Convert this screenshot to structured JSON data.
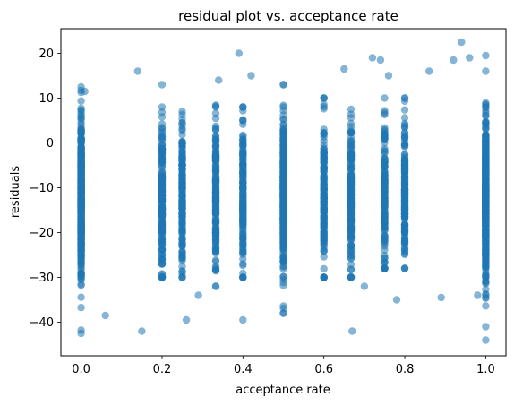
{
  "chart_data": {
    "type": "scatter",
    "title": "residual plot vs. acceptance rate",
    "xlabel": "acceptance rate",
    "ylabel": "residuals",
    "xlim": [
      -0.05,
      1.05
    ],
    "ylim": [
      -47.5,
      25.5
    ],
    "xticks": [
      0.0,
      0.2,
      0.4,
      0.6,
      0.8,
      1.0
    ],
    "xtick_labels": [
      "0.0",
      "0.2",
      "0.4",
      "0.6",
      "0.8",
      "1.0"
    ],
    "yticks": [
      -40,
      -30,
      -20,
      -10,
      0,
      10,
      20
    ],
    "ytick_labels": [
      "−40",
      "−30",
      "−20",
      "−10",
      "0",
      "10",
      "20"
    ],
    "grid": false,
    "legend": "none",
    "marker_color": "#1f77b4",
    "marker_alpha": 0.55,
    "approx_point_count": 5000,
    "distribution": {
      "center": -12,
      "spread": 9,
      "min": -44,
      "max": 22.5,
      "dense_columns": [
        {
          "x": 0.0,
          "ymin": -42.5,
          "ymax": 12.5
        },
        {
          "x": 1.0,
          "ymin": -44,
          "ymax": 19.5
        },
        {
          "x": 0.5,
          "ymin": -38,
          "ymax": 13
        },
        {
          "x": 0.333,
          "ymin": -32,
          "ymax": 10
        },
        {
          "x": 0.25,
          "ymin": -30,
          "ymax": 8
        },
        {
          "x": 0.667,
          "ymin": -30,
          "ymax": 12
        },
        {
          "x": 0.75,
          "ymin": -28,
          "ymax": 10
        },
        {
          "x": 0.2,
          "ymin": -30,
          "ymax": 8
        },
        {
          "x": 0.4,
          "ymin": -30,
          "ymax": 8
        },
        {
          "x": 0.6,
          "ymin": -30,
          "ymax": 10
        },
        {
          "x": 0.8,
          "ymin": -28,
          "ymax": 10
        }
      ]
    },
    "points": [
      {
        "x": 0.0,
        "y": -42.5
      },
      {
        "x": 0.0,
        "y": 12.5
      },
      {
        "x": 0.009,
        "y": 11.5
      },
      {
        "x": 1.0,
        "y": -44
      },
      {
        "x": 1.0,
        "y": 19.5
      },
      {
        "x": 0.94,
        "y": 22.5
      },
      {
        "x": 0.39,
        "y": 20
      },
      {
        "x": 0.67,
        "y": -42
      },
      {
        "x": 0.4,
        "y": -39.5
      },
      {
        "x": 0.14,
        "y": 16
      },
      {
        "x": 0.5,
        "y": -38
      },
      {
        "x": 0.5,
        "y": 13
      },
      {
        "x": 0.15,
        "y": -42
      },
      {
        "x": 0.26,
        "y": -39.5
      },
      {
        "x": 0.06,
        "y": -38.5
      },
      {
        "x": 0.42,
        "y": 15
      },
      {
        "x": 0.65,
        "y": 16.5
      },
      {
        "x": 0.72,
        "y": 19
      },
      {
        "x": 0.74,
        "y": 18.5
      },
      {
        "x": 0.92,
        "y": 18.5
      },
      {
        "x": 0.96,
        "y": 19
      },
      {
        "x": 0.76,
        "y": 15
      },
      {
        "x": 0.86,
        "y": 16
      },
      {
        "x": 0.34,
        "y": 14
      },
      {
        "x": 0.2,
        "y": 13
      },
      {
        "x": 0.78,
        "y": -35
      },
      {
        "x": 0.89,
        "y": -34.5
      },
      {
        "x": 0.98,
        "y": -34
      },
      {
        "x": 0.7,
        "y": -32
      },
      {
        "x": 0.29,
        "y": -34
      }
    ]
  }
}
